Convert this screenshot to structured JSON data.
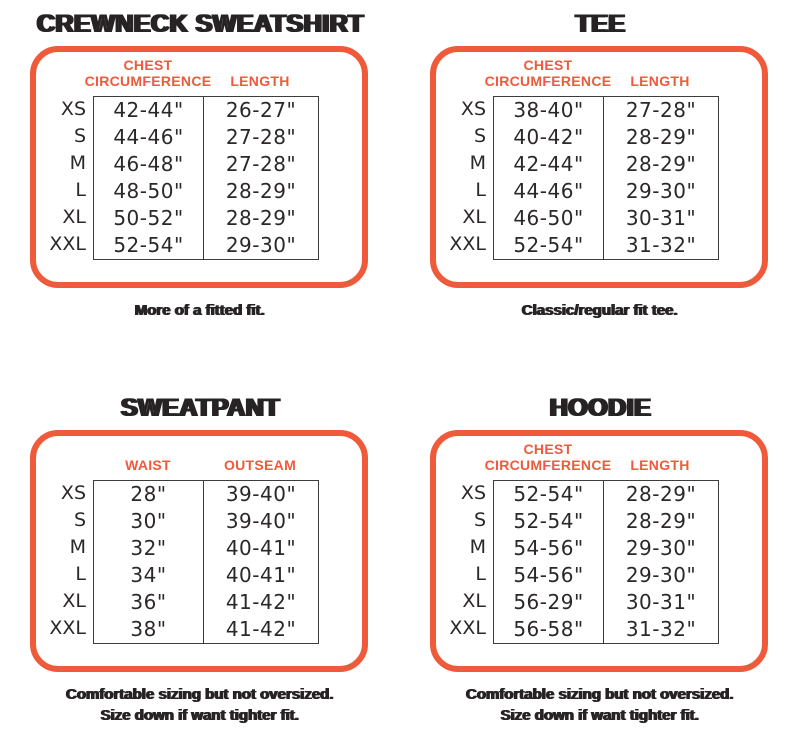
{
  "colors": {
    "accent_orange": "#EF5A3B",
    "ink_dark": "#272324",
    "table_line": "#3E3C3D",
    "background": "#FFFFFF"
  },
  "chart_data": [
    {
      "type": "table",
      "title": "CREWNECK SWEATSHIRT",
      "columns": [
        "CHEST CIRCUMFERENCE",
        "LENGTH"
      ],
      "row_labels": [
        "XS",
        "S",
        "M",
        "L",
        "XL",
        "XXL"
      ],
      "rows": [
        [
          "42-44\"",
          "26-27\""
        ],
        [
          "44-46\"",
          "27-28\""
        ],
        [
          "46-48\"",
          "27-28\""
        ],
        [
          "48-50\"",
          "28-29\""
        ],
        [
          "50-52\"",
          "28-29\""
        ],
        [
          "52-54\"",
          "29-30\""
        ]
      ],
      "caption_lines": [
        "More of a fitted fit."
      ]
    },
    {
      "type": "table",
      "title": "TEE",
      "columns": [
        "CHEST CIRCUMFERENCE",
        "LENGTH"
      ],
      "row_labels": [
        "XS",
        "S",
        "M",
        "L",
        "XL",
        "XXL"
      ],
      "rows": [
        [
          "38-40\"",
          "27-28\""
        ],
        [
          "40-42\"",
          "28-29\""
        ],
        [
          "42-44\"",
          "28-29\""
        ],
        [
          "44-46\"",
          "29-30\""
        ],
        [
          "46-50\"",
          "30-31\""
        ],
        [
          "52-54\"",
          "31-32\""
        ]
      ],
      "caption_lines": [
        "Classic/regular fit tee."
      ]
    },
    {
      "type": "table",
      "title": "SWEATPANT",
      "columns": [
        "WAIST",
        "OUTSEAM"
      ],
      "row_labels": [
        "XS",
        "S",
        "M",
        "L",
        "XL",
        "XXL"
      ],
      "rows": [
        [
          "28\"",
          "39-40\""
        ],
        [
          "30\"",
          "39-40\""
        ],
        [
          "32\"",
          "40-41\""
        ],
        [
          "34\"",
          "40-41\""
        ],
        [
          "36\"",
          "41-42\""
        ],
        [
          "38\"",
          "41-42\""
        ]
      ],
      "caption_lines": [
        "Comfortable sizing but not oversized.",
        "Size down if want tighter fit."
      ]
    },
    {
      "type": "table",
      "title": "HOODIE",
      "columns": [
        "CHEST CIRCUMFERENCE",
        "LENGTH"
      ],
      "row_labels": [
        "XS",
        "S",
        "M",
        "L",
        "XL",
        "XXL"
      ],
      "rows": [
        [
          "52-54\"",
          "28-29\""
        ],
        [
          "52-54\"",
          "28-29\""
        ],
        [
          "54-56\"",
          "29-30\""
        ],
        [
          "54-56\"",
          "29-30\""
        ],
        [
          "56-29\"",
          "30-31\""
        ],
        [
          "56-58\"",
          "31-32\""
        ]
      ],
      "caption_lines": [
        "Comfortable sizing but not oversized.",
        "Size down if want tighter fit."
      ]
    }
  ]
}
